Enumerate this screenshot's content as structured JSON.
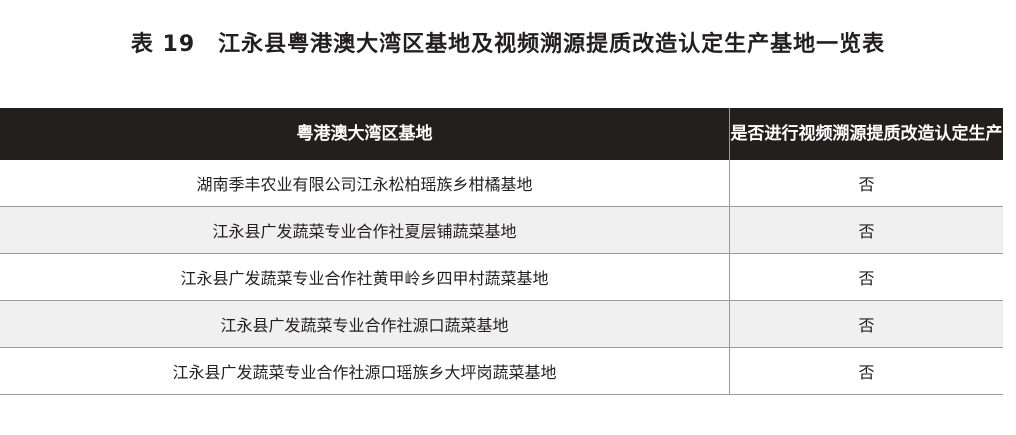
{
  "title": "表 19　江永县粤港澳大湾区基地及视频溯源提质改造认定生产基地一览表",
  "table": {
    "headers": [
      "粤港澳大湾区基地",
      "是否进行视频溯源提质改造认定生产"
    ],
    "rows": [
      [
        "湖南季丰农业有限公司江永松柏瑶族乡柑橘基地",
        "否"
      ],
      [
        "江永县广发蔬菜专业合作社夏层铺蔬菜基地",
        "否"
      ],
      [
        "江永县广发蔬菜专业合作社黄甲岭乡四甲村蔬菜基地",
        "否"
      ],
      [
        "江永县广发蔬菜专业合作社源口蔬菜基地",
        "否"
      ],
      [
        "江永县广发蔬菜专业合作社源口瑶族乡大坪岗蔬菜基地",
        "否"
      ]
    ]
  },
  "colors": {
    "header_bg": "#231f1e",
    "alt_row_bg": "#f0f0f0"
  }
}
